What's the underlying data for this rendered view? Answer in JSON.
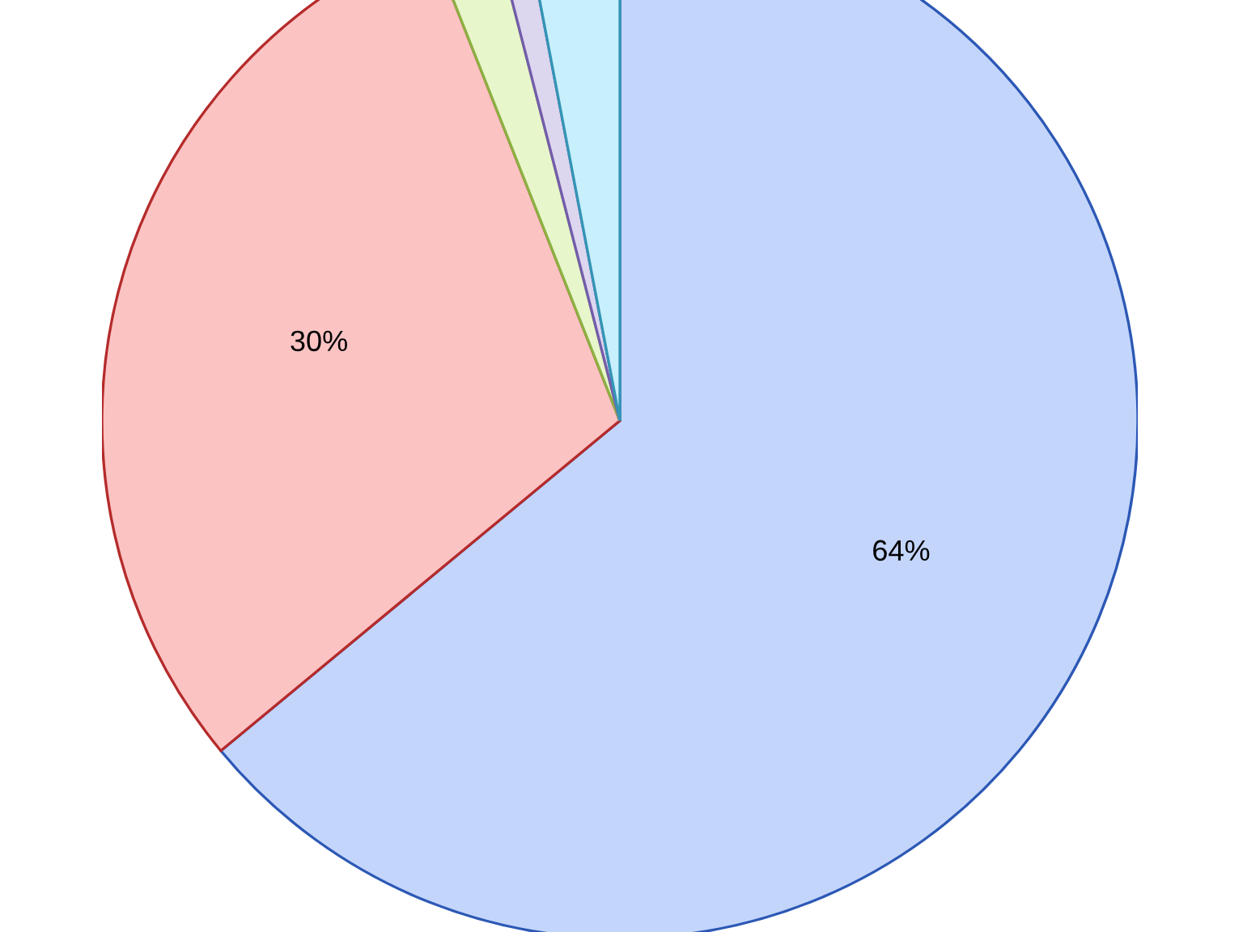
{
  "chart_data": {
    "type": "pie",
    "categories": [
      null,
      null,
      null,
      null,
      null
    ],
    "values": [
      64,
      30,
      2,
      1,
      3
    ],
    "colors": [
      "#c3d5fb",
      "#fcc3c3",
      "#e8f6cc",
      "#ddd6ef",
      "#c8effc"
    ],
    "value_labels": [
      "64%",
      "30%",
      null,
      null,
      null
    ]
  }
}
